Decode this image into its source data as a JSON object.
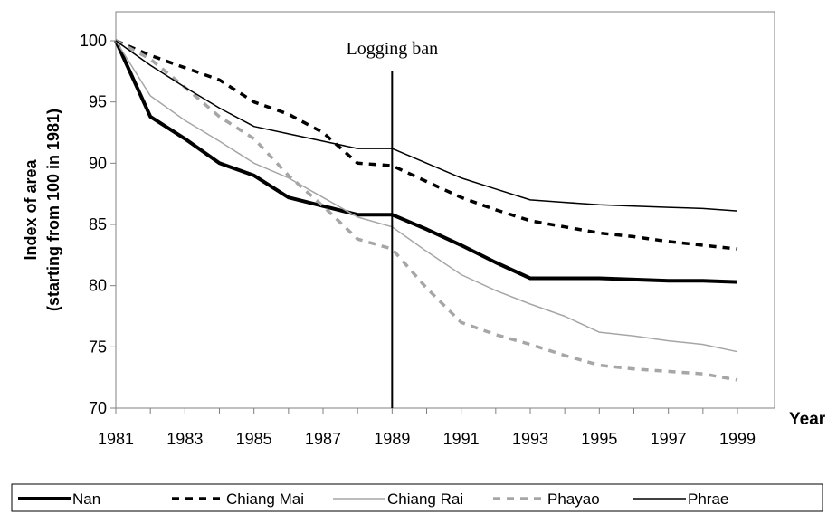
{
  "chart_data": {
    "type": "line",
    "ylabel_line1": "Index of area",
    "ylabel_line2": "(starting from 100 in 1981)",
    "xlabel": "Year",
    "annotation": {
      "text": "Logging ban",
      "x": 1989
    },
    "xlim": [
      1981,
      1999
    ],
    "ylim": [
      70,
      100
    ],
    "x_ticks": [
      "1981",
      "1983",
      "1985",
      "1987",
      "1989",
      "1991",
      "1993",
      "1995",
      "1997",
      "1999"
    ],
    "y_ticks": [
      "70",
      "75",
      "80",
      "85",
      "90",
      "95",
      "100"
    ],
    "grid": false,
    "legend_position": "bottom",
    "x": [
      1981,
      1982,
      1983,
      1984,
      1985,
      1986,
      1987,
      1988,
      1989,
      1990,
      1991,
      1992,
      1993,
      1994,
      1995,
      1996,
      1997,
      1998,
      1999
    ],
    "series": [
      {
        "name": "Nan",
        "color": "#000000",
        "style": "thick-solid",
        "values": [
          100,
          93.8,
          92.0,
          90.0,
          89.0,
          87.2,
          86.5,
          85.8,
          85.8,
          84.6,
          83.3,
          81.9,
          80.6,
          80.6,
          80.6,
          80.5,
          80.4,
          80.4,
          80.3
        ]
      },
      {
        "name": "Chiang Mai",
        "color": "#000000",
        "style": "dashed",
        "values": [
          100,
          98.8,
          97.8,
          96.8,
          95.0,
          94.0,
          92.5,
          90.0,
          89.8,
          88.5,
          87.2,
          86.2,
          85.3,
          84.8,
          84.3,
          84.0,
          83.6,
          83.3,
          83.0
        ]
      },
      {
        "name": "Chiang Rai",
        "color": "#a6a6a6",
        "style": "thin-solid",
        "values": [
          100,
          95.5,
          93.5,
          91.8,
          90.0,
          88.8,
          87.2,
          85.6,
          84.8,
          82.8,
          80.9,
          79.6,
          78.5,
          77.5,
          76.2,
          75.9,
          75.5,
          75.2,
          74.6
        ]
      },
      {
        "name": "Phayao",
        "color": "#a6a6a6",
        "style": "dashed",
        "values": [
          100,
          98.5,
          96.2,
          93.8,
          92.0,
          89.0,
          86.5,
          83.8,
          83.0,
          79.8,
          77.0,
          76.0,
          75.2,
          74.3,
          73.5,
          73.2,
          73.0,
          72.8,
          72.3
        ]
      },
      {
        "name": "Phrae",
        "color": "#000000",
        "style": "thin-solid",
        "values": [
          100,
          98.0,
          96.2,
          94.5,
          93.0,
          92.4,
          91.8,
          91.2,
          91.2,
          90.0,
          88.8,
          87.9,
          87.0,
          86.8,
          86.6,
          86.5,
          86.4,
          86.3,
          86.1
        ]
      }
    ]
  }
}
